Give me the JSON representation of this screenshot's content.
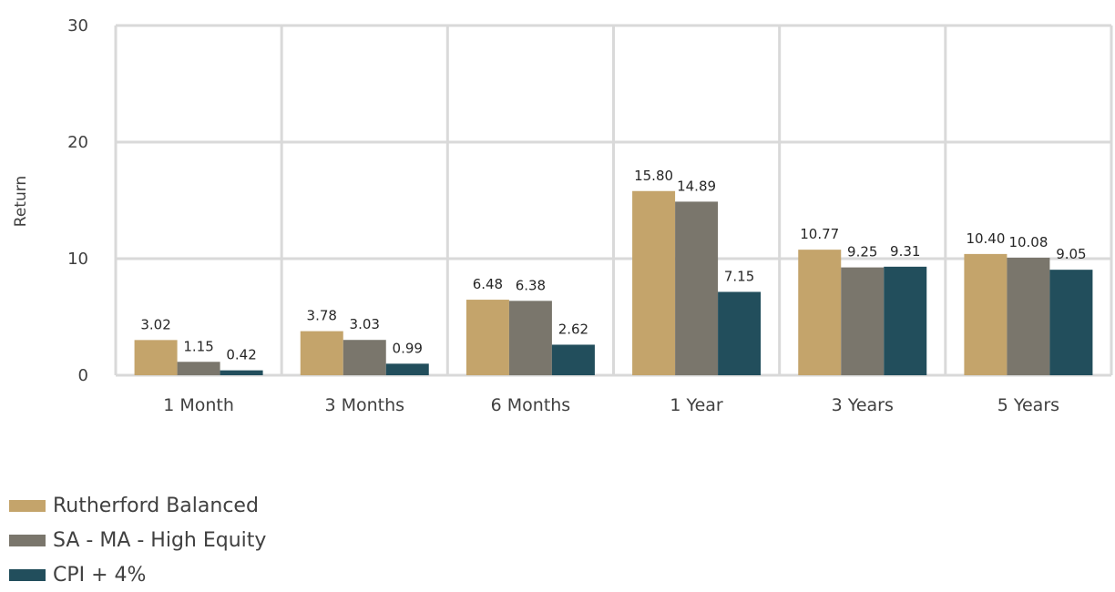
{
  "chart_data": {
    "type": "bar",
    "categories": [
      "1 Month",
      "3 Months",
      "6 Months",
      "1 Year",
      "3 Years",
      "5 Years"
    ],
    "series": [
      {
        "name": "Rutherford Balanced",
        "color": "#c4a46b",
        "values": [
          3.02,
          3.78,
          6.48,
          15.8,
          10.77,
          10.4
        ],
        "labels": [
          "3.02",
          "3.78",
          "6.48",
          "15.80",
          "10.77",
          "10.40"
        ]
      },
      {
        "name": "SA - MA - High Equity",
        "color": "#7a766c",
        "values": [
          1.15,
          3.03,
          6.38,
          14.89,
          9.25,
          10.08
        ],
        "labels": [
          "1.15",
          "3.03",
          "6.38",
          "14.89",
          "9.25",
          "10.08"
        ]
      },
      {
        "name": "CPI + 4%",
        "color": "#224e5c",
        "values": [
          0.42,
          0.99,
          2.62,
          7.15,
          9.31,
          9.05
        ],
        "labels": [
          "0.42",
          "0.99",
          "2.62",
          "7.15",
          "9.31",
          "9.05"
        ]
      }
    ],
    "xlabel": "",
    "ylabel": "Return",
    "ylim": [
      0,
      30
    ],
    "yticks": [
      0,
      10,
      20,
      30
    ],
    "grid": true,
    "legend_position": "bottom-left"
  }
}
